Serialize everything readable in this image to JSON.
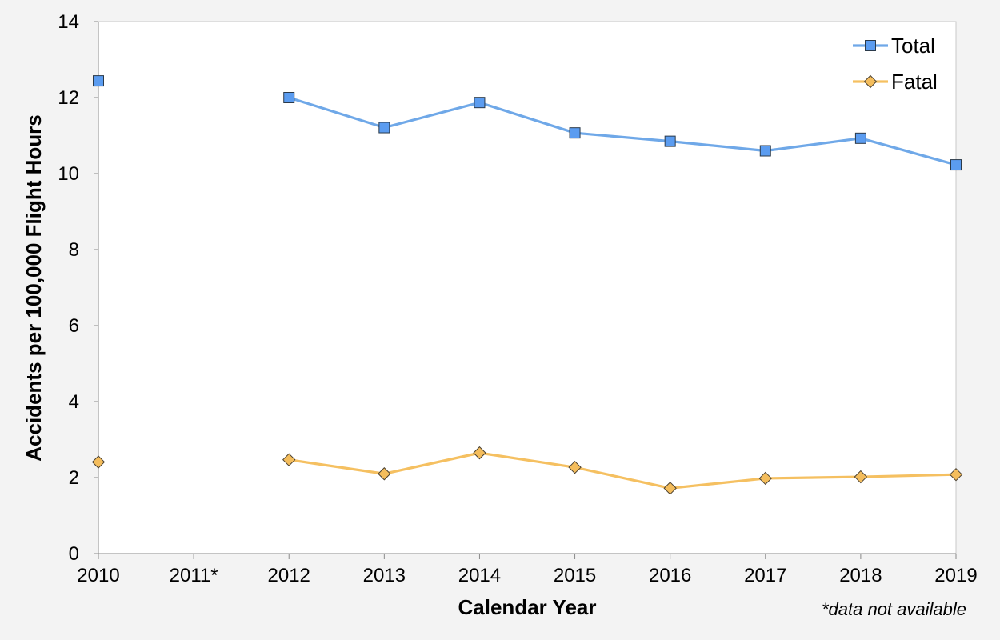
{
  "chart_data": {
    "type": "line",
    "xlabel": "Calendar Year",
    "ylabel": "Accidents per 100,000 Flight Hours",
    "categories": [
      "2010",
      "2011*",
      "2012",
      "2013",
      "2014",
      "2015",
      "2016",
      "2017",
      "2018",
      "2019"
    ],
    "ylim": [
      0,
      14
    ],
    "yticks": [
      "0",
      "2",
      "4",
      "6",
      "8",
      "10",
      "12",
      "14"
    ],
    "grid": false,
    "legend_position": "top-right",
    "series": [
      {
        "name": "Total",
        "marker": "square",
        "color": "#6fa8e8",
        "marker_fill": "#5b9cf0",
        "values": [
          12.44,
          null,
          12.0,
          11.21,
          11.87,
          11.07,
          10.85,
          10.6,
          10.93,
          10.23
        ]
      },
      {
        "name": "Fatal",
        "marker": "diamond",
        "color": "#f5c061",
        "marker_fill": "#f4bd5c",
        "values": [
          2.41,
          null,
          2.47,
          2.1,
          2.65,
          2.27,
          1.72,
          1.98,
          2.02,
          2.08
        ]
      }
    ],
    "footnote": "*data not available"
  }
}
